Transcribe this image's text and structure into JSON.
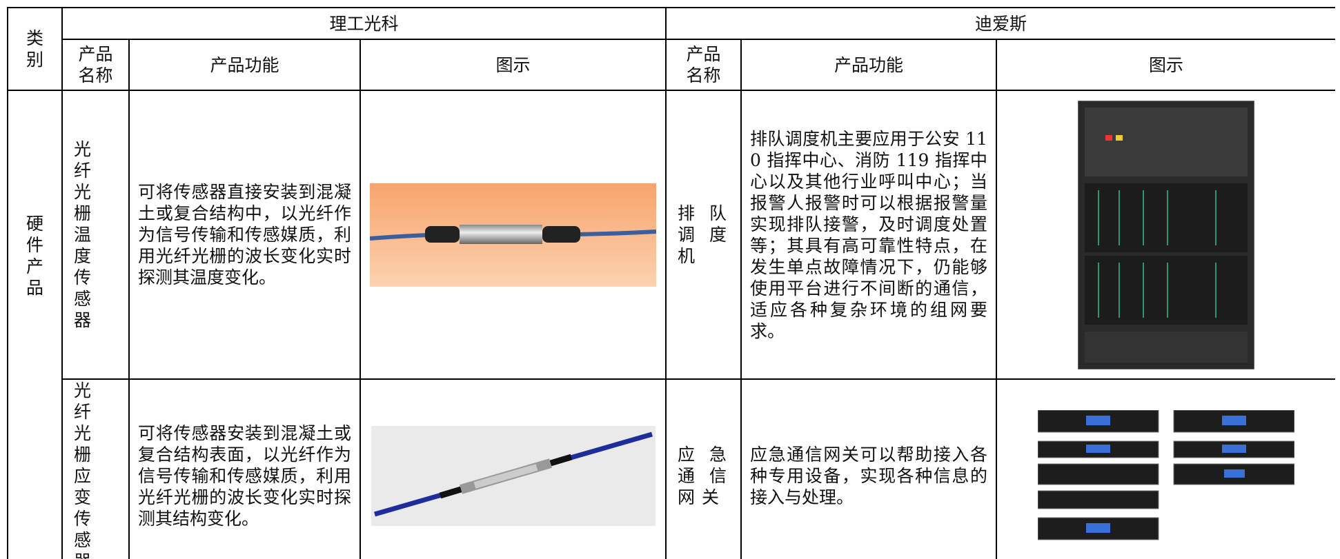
{
  "table": {
    "category_header": "类别",
    "groups": [
      {
        "name": "理工光科",
        "columns": [
          "产品名称",
          "产品功能",
          "图示"
        ]
      },
      {
        "name": "迪爱斯",
        "columns": [
          "产品名称",
          "产品功能",
          "图示"
        ]
      }
    ],
    "section": "硬件产品",
    "rows": [
      {
        "left": {
          "name": "光纤光栅温度传感器",
          "function": "可将传感器直接安装到混凝土或复合结构中，以光纤作为信号传输和传感媒质，利用光纤光栅的波长变化实时探测其温度变化。"
        },
        "right": {
          "name": "排队调度机",
          "function": "排队调度机主要应用于公安 110 指挥中心、消防 119 指挥中心以及其他行业呼叫中心；当报警人报警时可以根据报警量实现排队接警，及时调度处置等；其具有高可靠性特点，在发生单点故障情况下，仍能够使用平台进行不间断的通信，适应各种复杂环境的组网要求。"
        }
      },
      {
        "left": {
          "name": "光纤光栅应变传感器",
          "function": "可将传感器安装到混凝土或复合结构表面，以光纤作为信号传输和传感媒质，利用光纤光栅的波长变化实时探测其结构变化。"
        },
        "right": {
          "name": "应急通信网关",
          "function": "应急通信网关可以帮助接入各种专用设备，实现各种信息的接入与处理。"
        }
      }
    ]
  }
}
